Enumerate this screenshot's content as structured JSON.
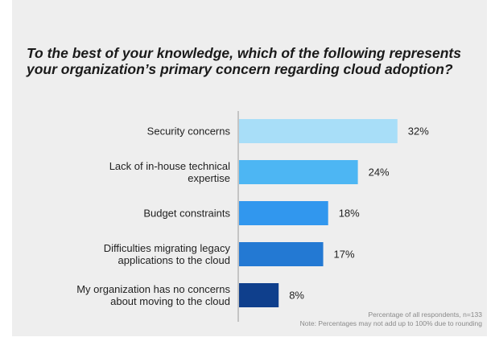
{
  "chart_data": {
    "type": "bar",
    "orientation": "horizontal",
    "title": "To the best of your knowledge, which of the following represents your organization’s primary concern regarding cloud adoption?",
    "categories": [
      [
        "Security concerns"
      ],
      [
        "Lack of in-house technical",
        "expertise"
      ],
      [
        "Budget constraints"
      ],
      [
        "Difficulties migrating legacy",
        "applications to the cloud"
      ],
      [
        "My organization has no concerns",
        "about moving to the cloud"
      ]
    ],
    "values": [
      32,
      24,
      18,
      17,
      8
    ],
    "value_labels": [
      "32%",
      "24%",
      "18%",
      "17%",
      "8%"
    ],
    "bar_colors": [
      "#a8def8",
      "#4db6f3",
      "#3197ee",
      "#2379d3",
      "#0f3f8c"
    ],
    "axis_color": "#999999",
    "grid": false,
    "legend": "none"
  },
  "footnote": {
    "line1": "Percentage of all respondents, n=133",
    "line2": "Note: Percentages may not add up to 100% due to rounding"
  }
}
